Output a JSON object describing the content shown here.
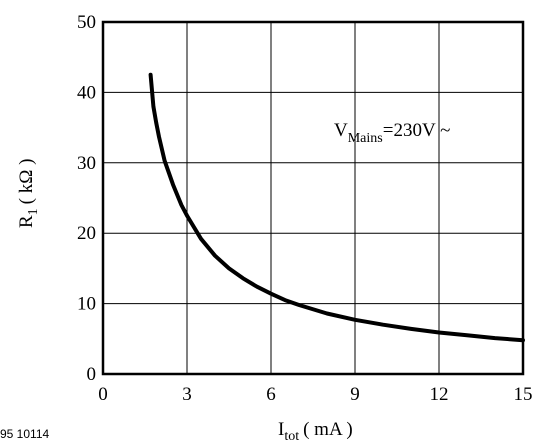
{
  "chart_data": {
    "type": "line",
    "xlabel": {
      "main": "I",
      "sub": "tot",
      "unit": "( mA )"
    },
    "ylabel": {
      "main": "R",
      "sub": "1",
      "unit": "( kΩ )"
    },
    "xlim": [
      0,
      15
    ],
    "ylim": [
      0,
      50
    ],
    "x_ticks": [
      0,
      3,
      6,
      9,
      12,
      15
    ],
    "y_ticks": [
      0,
      10,
      20,
      30,
      40,
      50
    ],
    "grid": true,
    "annotation": {
      "main": "V",
      "sub": "Mains",
      "rest": "=230V ~"
    },
    "figure_code": "95 10114",
    "series": [
      {
        "x": [
          1.7,
          1.8,
          1.9,
          2.0,
          2.2,
          2.5,
          2.8,
          3.0,
          3.5,
          4.0,
          4.5,
          5.0,
          5.5,
          6.0,
          6.5,
          7.0,
          8.0,
          9.0,
          10.0,
          11.0,
          12.0,
          13.0,
          14.0,
          15.0
        ],
        "y": [
          42.5,
          38.0,
          35.7,
          33.7,
          30.3,
          26.9,
          24.0,
          22.5,
          19.2,
          16.8,
          15.0,
          13.6,
          12.4,
          11.4,
          10.5,
          9.8,
          8.6,
          7.7,
          7.0,
          6.4,
          5.9,
          5.5,
          5.1,
          4.8
        ]
      }
    ]
  }
}
